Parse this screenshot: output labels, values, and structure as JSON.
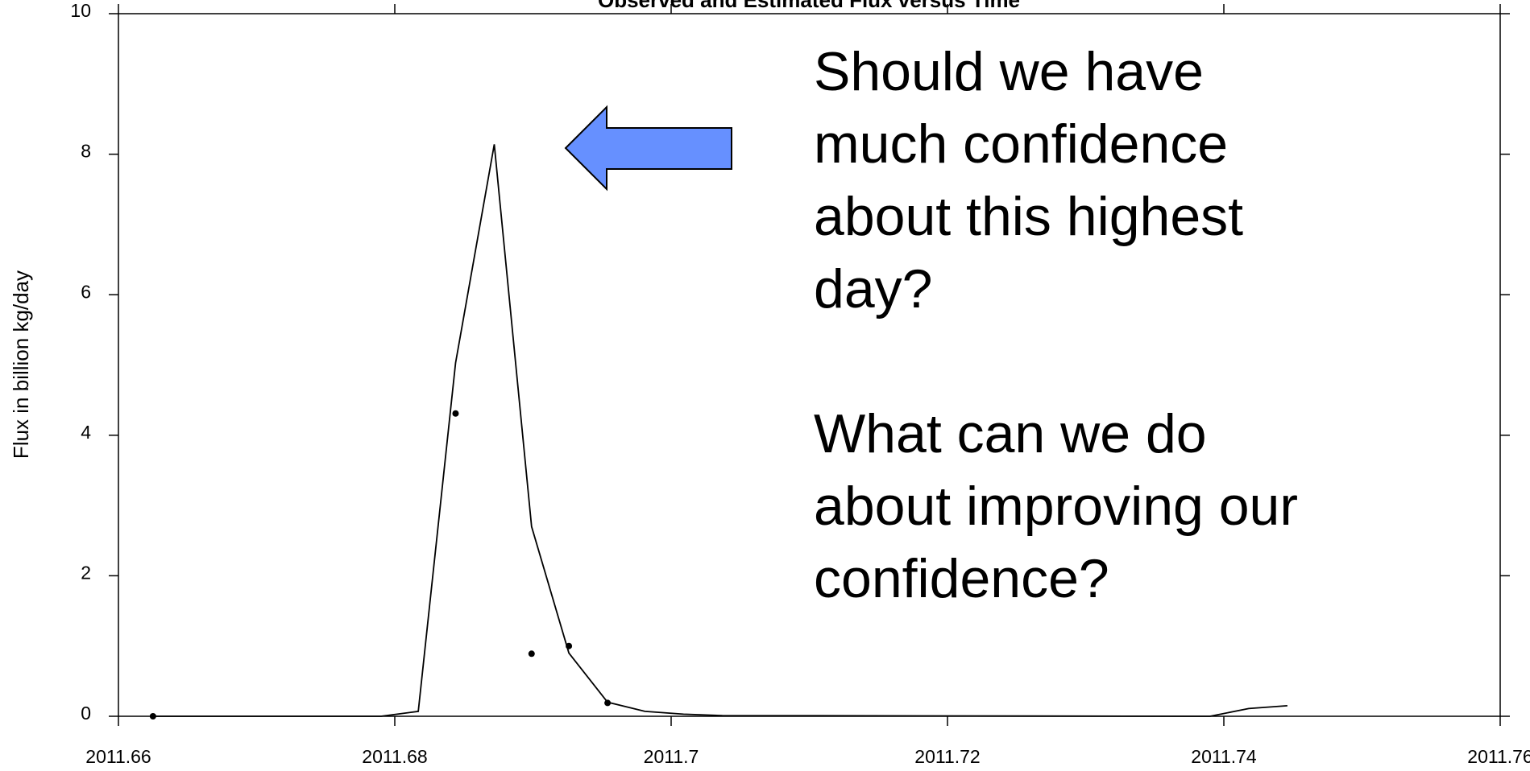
{
  "chart_data": {
    "type": "line",
    "title": "Observed and Estimated Flux versus Time",
    "ylabel": "Flux in billion kg/day",
    "xlim": [
      2011.66,
      2011.76
    ],
    "xticks": [
      2011.66,
      2011.68,
      2011.7,
      2011.72,
      2011.74,
      2011.76
    ],
    "ylim": [
      0,
      10
    ],
    "yticks": [
      0,
      2,
      4,
      6,
      8,
      10
    ],
    "series": [
      {
        "name": "Estimated",
        "color": "#000000",
        "x": [
          2011.6625,
          2011.679,
          2011.6817,
          2011.6844,
          2011.6872,
          2011.6899,
          2011.6926,
          2011.6954,
          2011.6981,
          2011.7009,
          2011.7037,
          2011.739,
          2011.7418,
          2011.7446
        ],
        "values": [
          0,
          0,
          0.07,
          5.03,
          8.14,
          2.7,
          0.9,
          0.2,
          0.07,
          0.03,
          0.01,
          0,
          0.11,
          0.15
        ]
      },
      {
        "name": "Observed",
        "color": "#000000",
        "kind": "scatter",
        "x": [
          2011.6625,
          2011.6844,
          2011.6899,
          2011.6926,
          2011.6954
        ],
        "values": [
          0,
          4.31,
          0.89,
          1.0,
          0.19
        ]
      }
    ],
    "annotation": [
      "Should we have",
      "much confidence",
      "about this highest",
      "day?",
      "What can we do",
      "about improving our",
      "confidence?"
    ],
    "arrow_color": "#6690ff"
  }
}
